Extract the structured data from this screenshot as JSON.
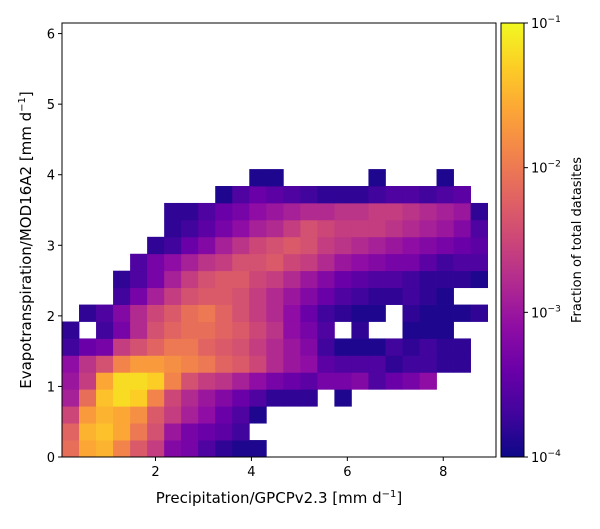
{
  "chart_data": {
    "type": "heatmap",
    "xlabel": "Precipitation/GPCPv2.3 [mm d",
    "xlabel_sup": "−1",
    "xlabel_end": "]",
    "ylabel": "Evapotranspiration/MOD16A2 [mm d",
    "ylabel_sup": "−1",
    "ylabel_end": "]",
    "x_range": [
      0.05,
      9.1
    ],
    "y_range": [
      0,
      6.15
    ],
    "x_ticks": [
      2,
      4,
      6,
      8
    ],
    "y_ticks": [
      0,
      1,
      2,
      3,
      4,
      5,
      6
    ],
    "bin_width": 0.355,
    "bin_height": 0.24,
    "color_scale": "log",
    "colormap": "plasma",
    "colorbar": {
      "label": "Fraction of total datasites",
      "min": 0.0001,
      "max": 0.1,
      "ticks": [
        {
          "base": "10",
          "exp": "−4",
          "value": 0.0001
        },
        {
          "base": "10",
          "exp": "−3",
          "value": 0.001
        },
        {
          "base": "10",
          "exp": "−2",
          "value": 0.01
        },
        {
          "base": "10",
          "exp": "−1",
          "value": 0.1
        }
      ]
    },
    "notes": "rows[i] = log10(fraction) for y-bin i (from y=0 upward); cols[j] starts at x=0.05; null = empty bin",
    "rows": [
      [
        -2.1,
        -1.6,
        -1.5,
        -1.9,
        -2.3,
        -2.6,
        -3.2,
        -3.3,
        -3.6,
        -3.8,
        -3.9,
        -3.9,
        null,
        null,
        null,
        null,
        null,
        null,
        null,
        null,
        null,
        null,
        null,
        null,
        null
      ],
      [
        -2.2,
        -1.5,
        -1.4,
        -1.6,
        -2.0,
        -2.4,
        -3.0,
        -3.3,
        -3.4,
        -3.5,
        -3.7,
        null,
        null,
        null,
        null,
        null,
        null,
        null,
        null,
        null,
        null,
        null,
        null,
        null,
        null
      ],
      [
        -2.5,
        -1.7,
        -1.5,
        -1.6,
        -1.8,
        -2.3,
        -2.6,
        -2.9,
        -3.1,
        -3.4,
        -3.6,
        -3.9,
        null,
        null,
        null,
        null,
        null,
        null,
        null,
        null,
        null,
        null,
        null,
        null,
        null
      ],
      [
        -2.9,
        -2.1,
        -1.4,
        -1.2,
        -1.3,
        -1.9,
        -2.5,
        -2.8,
        -3.0,
        -3.2,
        -3.4,
        -3.6,
        -3.8,
        -3.8,
        -3.8,
        null,
        -3.9,
        null,
        null,
        null,
        null,
        null,
        null,
        null,
        null
      ],
      [
        -3.0,
        -2.6,
        -1.6,
        -1.2,
        -1.2,
        -1.3,
        -1.9,
        -2.4,
        -2.6,
        -2.7,
        -2.9,
        -3.1,
        -3.3,
        -3.4,
        -3.5,
        -3.3,
        -3.3,
        -3.2,
        -3.6,
        -3.4,
        -3.3,
        -3.1,
        null,
        null,
        null
      ],
      [
        -3.1,
        -2.7,
        -2.4,
        -1.9,
        -1.7,
        -1.7,
        -1.8,
        -1.9,
        -2.0,
        -2.2,
        -2.3,
        -2.5,
        -2.8,
        -3.0,
        -3.1,
        -3.5,
        -3.6,
        -3.6,
        -3.6,
        -3.8,
        -3.7,
        -3.7,
        -3.8,
        -3.8,
        null
      ],
      [
        -3.7,
        -3.4,
        -3.3,
        -2.6,
        -2.4,
        -2.2,
        -2.0,
        -2.0,
        -2.2,
        -2.3,
        -2.4,
        -2.6,
        -2.8,
        -3.0,
        -3.2,
        -3.7,
        -3.9,
        -3.9,
        -3.9,
        -3.7,
        -3.8,
        -3.7,
        -3.8,
        -3.8,
        null
      ],
      [
        -3.8,
        null,
        -3.7,
        -3.3,
        -2.8,
        -2.4,
        -2.2,
        -2.1,
        -2.1,
        -2.2,
        -2.3,
        -2.5,
        -2.7,
        -3.1,
        -3.3,
        -3.6,
        null,
        -3.8,
        null,
        null,
        -3.9,
        -3.9,
        -3.9,
        null,
        null
      ],
      [
        null,
        -3.8,
        -3.6,
        -3.2,
        -2.8,
        -2.5,
        -2.3,
        -2.1,
        -2.0,
        -2.2,
        -2.4,
        -2.6,
        -2.8,
        -3.1,
        -3.4,
        -3.7,
        -3.8,
        -3.9,
        -3.9,
        null,
        -3.8,
        -3.9,
        -3.9,
        -3.9,
        -3.8
      ],
      [
        null,
        null,
        null,
        -3.7,
        -3.3,
        -2.9,
        -2.6,
        -2.4,
        -2.3,
        -2.3,
        -2.4,
        -2.6,
        -2.8,
        -3.0,
        -3.2,
        -3.4,
        -3.6,
        -3.7,
        -3.8,
        -3.8,
        -3.7,
        -3.8,
        -3.9,
        null,
        null
      ],
      [
        null,
        null,
        null,
        -3.8,
        -3.6,
        -3.3,
        -2.9,
        -2.6,
        -2.4,
        -2.3,
        -2.3,
        -2.5,
        -2.6,
        -2.8,
        -3.0,
        -3.2,
        -3.4,
        -3.5,
        -3.6,
        -3.6,
        -3.7,
        -3.8,
        -3.8,
        -3.8,
        -3.9
      ],
      [
        null,
        null,
        null,
        null,
        -3.6,
        -3.3,
        -3.1,
        -2.9,
        -2.7,
        -2.6,
        -2.4,
        -2.4,
        -2.3,
        -2.5,
        -2.6,
        -2.8,
        -3.0,
        -3.1,
        -3.2,
        -3.3,
        -3.3,
        -3.5,
        -3.7,
        -3.6,
        -3.6
      ],
      [
        null,
        null,
        null,
        null,
        null,
        -3.8,
        -3.7,
        -3.4,
        -3.2,
        -2.9,
        -2.7,
        -2.5,
        -2.4,
        -2.3,
        -2.4,
        -2.6,
        -2.7,
        -2.8,
        -2.9,
        -3.0,
        -3.1,
        -3.2,
        -3.3,
        -3.4,
        -3.5
      ],
      [
        null,
        null,
        null,
        null,
        null,
        null,
        -3.8,
        -3.7,
        -3.5,
        -3.3,
        -3.1,
        -2.9,
        -2.8,
        -2.6,
        -2.4,
        -2.5,
        -2.6,
        -2.6,
        -2.6,
        -2.7,
        -2.8,
        -2.9,
        -3.0,
        -3.2,
        -3.6
      ],
      [
        null,
        null,
        null,
        null,
        null,
        null,
        -3.8,
        -3.8,
        -3.6,
        -3.4,
        -3.3,
        -3.1,
        -3.0,
        -2.9,
        -2.8,
        -2.8,
        -2.7,
        -2.7,
        -2.6,
        -2.6,
        -2.7,
        -2.8,
        -2.9,
        -3.0,
        -3.8
      ],
      [
        null,
        null,
        null,
        null,
        null,
        null,
        null,
        null,
        null,
        -3.9,
        -3.6,
        -3.4,
        -3.5,
        -3.6,
        -3.7,
        -3.8,
        -3.8,
        -3.8,
        -3.7,
        -3.6,
        -3.6,
        -3.7,
        -3.6,
        -3.5,
        null
      ],
      [
        null,
        null,
        null,
        null,
        null,
        null,
        null,
        null,
        null,
        null,
        null,
        -3.9,
        -3.9,
        null,
        null,
        null,
        null,
        null,
        -3.9,
        null,
        null,
        null,
        -3.9,
        null,
        null
      ]
    ]
  }
}
